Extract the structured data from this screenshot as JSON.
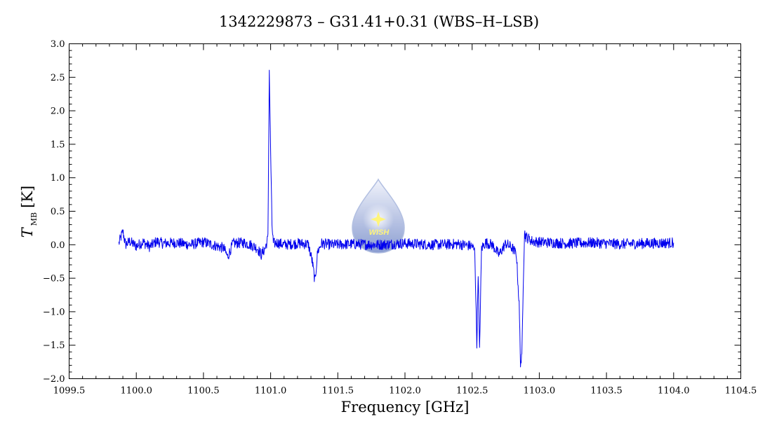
{
  "chart_data": {
    "type": "line",
    "title": "1342229873 – G31.41+0.31 (WBS–H–LSB)",
    "xlabel": "Frequency [GHz]",
    "ylabel_main": "T",
    "ylabel_sub": "MB",
    "ylabel_unit": "[K]",
    "xlim": [
      1099.5,
      1104.5
    ],
    "ylim": [
      -2.0,
      3.0
    ],
    "x_ticks": [
      1099.5,
      1100.0,
      1100.5,
      1101.0,
      1101.5,
      1102.0,
      1102.5,
      1103.0,
      1103.5,
      1104.0,
      1104.5
    ],
    "x_tick_labels": [
      "1099.5",
      "1100.0",
      "1100.5",
      "1101.0",
      "1101.5",
      "1102.0",
      "1102.5",
      "1103.0",
      "1103.5",
      "1104.0",
      "1104.5"
    ],
    "y_ticks": [
      -2.0,
      -1.5,
      -1.0,
      -0.5,
      0.0,
      0.5,
      1.0,
      1.5,
      2.0,
      2.5,
      3.0
    ],
    "y_tick_labels": [
      "−2.0",
      "−1.5",
      "−1.0",
      "−0.5",
      "0.0",
      "0.5",
      "1.0",
      "1.5",
      "2.0",
      "2.5",
      "3.0"
    ],
    "grid": false,
    "series": [
      {
        "color": "#0000ee",
        "x": [
          1099.87,
          1099.9,
          1099.92,
          1099.95,
          1100.0,
          1100.05,
          1100.1,
          1100.15,
          1100.2,
          1100.3,
          1100.4,
          1100.5,
          1100.6,
          1100.65,
          1100.68,
          1100.72,
          1100.8,
          1100.85,
          1100.9,
          1100.93,
          1100.96,
          1100.98,
          1100.99,
          1101.0,
          1101.01,
          1101.02,
          1101.05,
          1101.1,
          1101.2,
          1101.28,
          1101.31,
          1101.33,
          1101.35,
          1101.38,
          1101.45,
          1101.6,
          1101.8,
          1102.0,
          1102.2,
          1102.4,
          1102.5,
          1102.52,
          1102.535,
          1102.545,
          1102.555,
          1102.57,
          1102.6,
          1102.65,
          1102.7,
          1102.75,
          1102.8,
          1102.83,
          1102.85,
          1102.86,
          1102.87,
          1102.88,
          1102.89,
          1102.9,
          1102.95,
          1103.0,
          1103.2,
          1103.4,
          1103.6,
          1103.8,
          1104.0
        ],
        "y": [
          0.02,
          0.2,
          0.0,
          0.05,
          -0.02,
          0.04,
          -0.03,
          0.05,
          0.02,
          0.03,
          0.0,
          0.04,
          -0.02,
          -0.05,
          -0.18,
          0.02,
          0.03,
          0.0,
          -0.05,
          -0.15,
          -0.05,
          0.1,
          2.6,
          1.4,
          0.3,
          0.02,
          0.03,
          0.0,
          0.02,
          0.01,
          -0.25,
          -0.55,
          -0.1,
          0.02,
          0.0,
          0.01,
          0.0,
          0.02,
          0.0,
          0.01,
          -0.02,
          -0.1,
          -1.5,
          -0.4,
          -1.6,
          -0.05,
          0.03,
          0.0,
          -0.15,
          0.02,
          -0.05,
          -0.15,
          -0.9,
          -1.75,
          -1.7,
          -0.6,
          0.18,
          0.12,
          0.05,
          0.04,
          0.02,
          0.03,
          0.01,
          0.02,
          0.03
        ]
      }
    ]
  },
  "watermark": {
    "text": "WISH",
    "colors": {
      "drop_top": "#eef1fb",
      "drop_bottom": "#6f86c6",
      "star": "#fff35a"
    }
  }
}
